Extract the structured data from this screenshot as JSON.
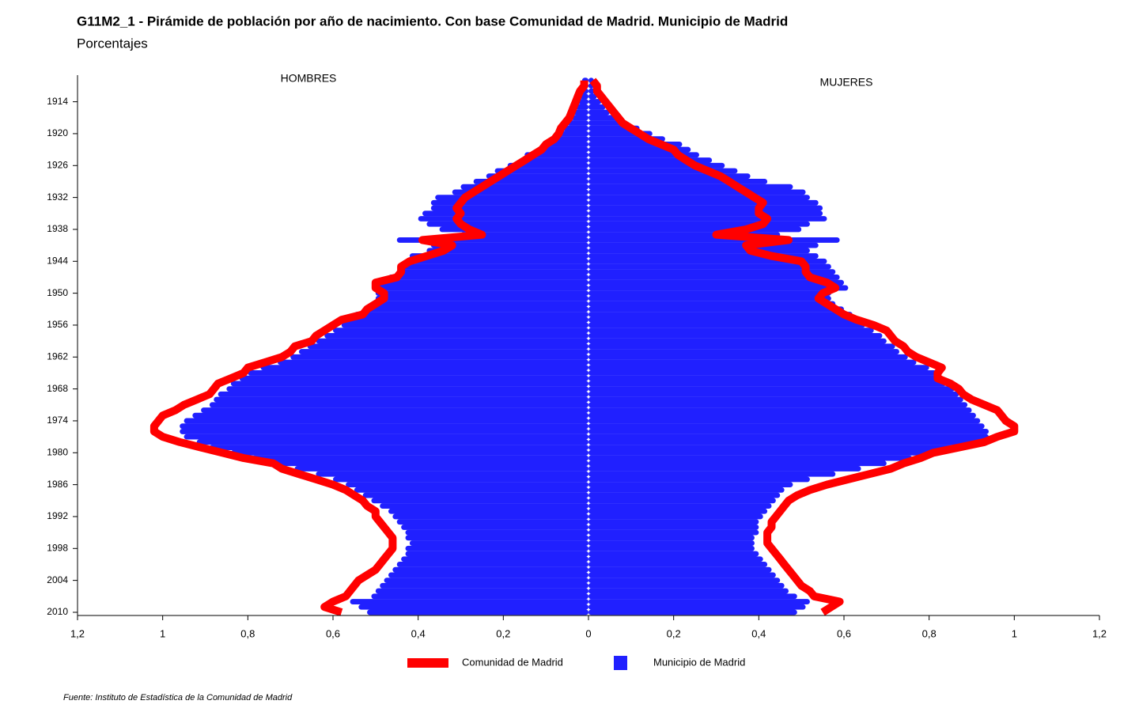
{
  "chart_data": {
    "type": "pyramid",
    "title": "G11M2_1 - Pirámide de población por año de nacimiento. Con base Comunidad de Madrid.  Municipio de Madrid",
    "subtitle": "Porcentajes",
    "left_label": "HOMBRES",
    "right_label": "MUJERES",
    "source": "Fuente: Instituto de Estadística de la Comunidad de Madrid",
    "xlim": [
      -1.2,
      1.2
    ],
    "xticks": [
      {
        "value": -1.2,
        "label": "1,2"
      },
      {
        "value": -1,
        "label": "1"
      },
      {
        "value": -0.8,
        "label": "0,8"
      },
      {
        "value": -0.6,
        "label": "0,6"
      },
      {
        "value": -0.4,
        "label": "0,4"
      },
      {
        "value": -0.2,
        "label": "0,2"
      },
      0,
      {
        "value": 0.2,
        "label": "0,2"
      },
      {
        "value": 0.4,
        "label": "0,4"
      },
      {
        "value": 0.6,
        "label": "0,6"
      },
      {
        "value": 0.8,
        "label": "0,8"
      },
      1,
      {
        "value": 1.2,
        "label": "1,2"
      }
    ],
    "ylim": [
      1909,
      2010.6
    ],
    "yticks": [
      1914,
      1920,
      1926,
      1932,
      1938,
      1944,
      1950,
      1956,
      1962,
      1968,
      1974,
      1980,
      1986,
      1992,
      1998,
      2004,
      2010
    ],
    "years": [
      1910,
      1911,
      1912,
      1913,
      1914,
      1915,
      1916,
      1917,
      1918,
      1919,
      1920,
      1921,
      1922,
      1923,
      1924,
      1925,
      1926,
      1927,
      1928,
      1929,
      1930,
      1931,
      1932,
      1933,
      1934,
      1935,
      1936,
      1937,
      1938,
      1939,
      1940,
      1941,
      1942,
      1943,
      1944,
      1945,
      1946,
      1947,
      1948,
      1949,
      1950,
      1951,
      1952,
      1953,
      1954,
      1955,
      1956,
      1957,
      1958,
      1959,
      1960,
      1961,
      1962,
      1963,
      1964,
      1965,
      1966,
      1967,
      1968,
      1969,
      1970,
      1971,
      1972,
      1973,
      1974,
      1975,
      1976,
      1977,
      1978,
      1979,
      1980,
      1981,
      1982,
      1983,
      1984,
      1985,
      1986,
      1987,
      1988,
      1989,
      1990,
      1991,
      1992,
      1993,
      1994,
      1995,
      1996,
      1997,
      1998,
      1999,
      2000,
      2001,
      2002,
      2003,
      2004,
      2005,
      2006,
      2007,
      2008,
      2009,
      2010
    ],
    "series": [
      {
        "name": "Comunidad de Madrid",
        "color": "#ff0000",
        "style": "line",
        "hombres": [
          -0.01,
          -0.01,
          -0.02,
          -0.025,
          -0.03,
          -0.035,
          -0.04,
          -0.045,
          -0.055,
          -0.065,
          -0.07,
          -0.08,
          -0.1,
          -0.11,
          -0.13,
          -0.15,
          -0.17,
          -0.19,
          -0.21,
          -0.23,
          -0.25,
          -0.27,
          -0.29,
          -0.3,
          -0.31,
          -0.3,
          -0.31,
          -0.3,
          -0.28,
          -0.25,
          -0.39,
          -0.32,
          -0.34,
          -0.38,
          -0.42,
          -0.44,
          -0.44,
          -0.45,
          -0.5,
          -0.5,
          -0.48,
          -0.48,
          -0.5,
          -0.52,
          -0.53,
          -0.58,
          -0.6,
          -0.62,
          -0.64,
          -0.65,
          -0.69,
          -0.7,
          -0.72,
          -0.76,
          -0.8,
          -0.81,
          -0.84,
          -0.87,
          -0.88,
          -0.89,
          -0.92,
          -0.95,
          -0.97,
          -1.0,
          -1.01,
          -1.02,
          -1.02,
          -1.0,
          -0.96,
          -0.91,
          -0.86,
          -0.81,
          -0.74,
          -0.72,
          -0.68,
          -0.64,
          -0.6,
          -0.57,
          -0.55,
          -0.53,
          -0.52,
          -0.5,
          -0.5,
          -0.49,
          -0.48,
          -0.47,
          -0.46,
          -0.46,
          -0.46,
          -0.47,
          -0.48,
          -0.49,
          -0.5,
          -0.52,
          -0.54,
          -0.55,
          -0.56,
          -0.57,
          -0.6,
          -0.62,
          -0.58
        ],
        "mujeres": [
          0.01,
          0.02,
          0.02,
          0.03,
          0.04,
          0.05,
          0.06,
          0.07,
          0.08,
          0.1,
          0.12,
          0.14,
          0.17,
          0.2,
          0.21,
          0.23,
          0.25,
          0.28,
          0.31,
          0.33,
          0.35,
          0.37,
          0.39,
          0.41,
          0.4,
          0.4,
          0.42,
          0.41,
          0.37,
          0.3,
          0.47,
          0.37,
          0.38,
          0.43,
          0.5,
          0.51,
          0.51,
          0.52,
          0.56,
          0.58,
          0.55,
          0.54,
          0.56,
          0.58,
          0.6,
          0.63,
          0.67,
          0.7,
          0.71,
          0.72,
          0.74,
          0.75,
          0.77,
          0.8,
          0.83,
          0.82,
          0.82,
          0.85,
          0.87,
          0.88,
          0.9,
          0.93,
          0.96,
          0.97,
          0.98,
          1.0,
          1.0,
          0.96,
          0.93,
          0.87,
          0.81,
          0.78,
          0.74,
          0.71,
          0.66,
          0.61,
          0.56,
          0.52,
          0.49,
          0.47,
          0.46,
          0.45,
          0.44,
          0.43,
          0.43,
          0.42,
          0.42,
          0.42,
          0.43,
          0.44,
          0.45,
          0.46,
          0.47,
          0.48,
          0.49,
          0.5,
          0.52,
          0.53,
          0.59,
          0.57,
          0.55
        ]
      },
      {
        "name": "Municipio de Madrid",
        "color": "#2020ff",
        "style": "bar",
        "hombres": [
          -0.015,
          -0.015,
          -0.02,
          -0.02,
          -0.025,
          -0.03,
          -0.035,
          -0.04,
          -0.05,
          -0.06,
          -0.07,
          -0.08,
          -0.1,
          -0.12,
          -0.15,
          -0.16,
          -0.19,
          -0.22,
          -0.24,
          -0.27,
          -0.3,
          -0.32,
          -0.36,
          -0.37,
          -0.37,
          -0.39,
          -0.4,
          -0.38,
          -0.35,
          -0.3,
          -0.45,
          -0.37,
          -0.38,
          -0.42,
          -0.43,
          -0.44,
          -0.45,
          -0.47,
          -0.49,
          -0.5,
          -0.5,
          -0.5,
          -0.5,
          -0.52,
          -0.55,
          -0.57,
          -0.58,
          -0.6,
          -0.62,
          -0.64,
          -0.66,
          -0.68,
          -0.7,
          -0.73,
          -0.77,
          -0.8,
          -0.82,
          -0.84,
          -0.85,
          -0.87,
          -0.88,
          -0.89,
          -0.91,
          -0.93,
          -0.95,
          -0.96,
          -0.96,
          -0.95,
          -0.92,
          -0.89,
          -0.84,
          -0.79,
          -0.74,
          -0.69,
          -0.64,
          -0.6,
          -0.57,
          -0.55,
          -0.53,
          -0.51,
          -0.49,
          -0.47,
          -0.46,
          -0.45,
          -0.44,
          -0.43,
          -0.43,
          -0.42,
          -0.43,
          -0.43,
          -0.44,
          -0.45,
          -0.46,
          -0.47,
          -0.48,
          -0.49,
          -0.5,
          -0.51,
          -0.56,
          -0.54,
          -0.52
        ],
        "mujeres": [
          0.01,
          0.01,
          0.015,
          0.02,
          0.03,
          0.04,
          0.05,
          0.07,
          0.09,
          0.12,
          0.15,
          0.18,
          0.22,
          0.24,
          0.26,
          0.29,
          0.32,
          0.35,
          0.38,
          0.42,
          0.48,
          0.51,
          0.52,
          0.54,
          0.55,
          0.55,
          0.56,
          0.52,
          0.5,
          0.45,
          0.59,
          0.54,
          0.52,
          0.54,
          0.56,
          0.57,
          0.58,
          0.59,
          0.6,
          0.61,
          0.57,
          0.57,
          0.58,
          0.6,
          0.62,
          0.64,
          0.65,
          0.67,
          0.69,
          0.7,
          0.72,
          0.73,
          0.75,
          0.77,
          0.8,
          0.83,
          0.83,
          0.84,
          0.86,
          0.87,
          0.88,
          0.89,
          0.9,
          0.91,
          0.92,
          0.93,
          0.94,
          0.94,
          0.92,
          0.88,
          0.82,
          0.76,
          0.7,
          0.64,
          0.58,
          0.52,
          0.48,
          0.46,
          0.45,
          0.44,
          0.43,
          0.42,
          0.41,
          0.4,
          0.4,
          0.4,
          0.39,
          0.39,
          0.39,
          0.4,
          0.41,
          0.42,
          0.43,
          0.44,
          0.45,
          0.46,
          0.47,
          0.49,
          0.52,
          0.51,
          0.49
        ]
      }
    ]
  }
}
